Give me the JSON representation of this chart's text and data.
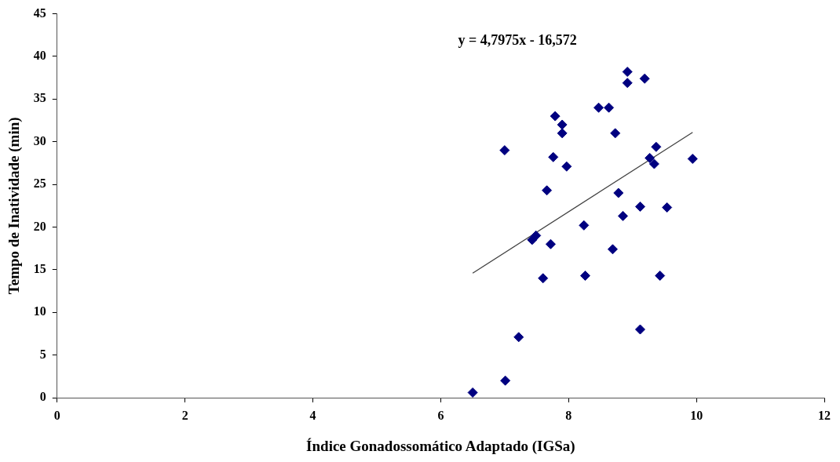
{
  "chart_data": {
    "type": "scatter",
    "xlabel": "Índice Gonadossomático Adaptado (IGSa)",
    "ylabel": "Tempo de Inatividade (min)",
    "annotations": [
      "y = 4,7975x - 16,572"
    ],
    "xlim": [
      0,
      12
    ],
    "xticks": [
      0,
      2,
      4,
      6,
      8,
      10,
      12
    ],
    "ylim": [
      0,
      45
    ],
    "yticks": [
      0,
      5,
      10,
      15,
      20,
      25,
      30,
      35,
      40,
      45
    ],
    "grid": false,
    "legend": false,
    "marker": "diamond",
    "series": [
      {
        "color": "#000080",
        "x": [
          6.5,
          7.01,
          7.22,
          7.0,
          7.66,
          7.6,
          7.72,
          7.76,
          7.79,
          7.9,
          7.9,
          7.97,
          8.24,
          8.26,
          8.47,
          8.63,
          8.73,
          8.69,
          8.78,
          8.85,
          8.92,
          8.92,
          9.19,
          9.12,
          9.12,
          9.27,
          9.34,
          9.37,
          9.43,
          9.54,
          9.94,
          7.43,
          7.49
        ],
        "values": [
          0.6,
          2.0,
          7.1,
          29.0,
          24.3,
          14.0,
          18.0,
          28.2,
          33.0,
          32.0,
          31.0,
          27.1,
          20.2,
          14.3,
          34.0,
          34.0,
          31.0,
          17.4,
          24.0,
          21.3,
          38.2,
          36.9,
          37.4,
          22.4,
          8.0,
          28.1,
          27.4,
          29.4,
          14.3,
          22.3,
          28.0,
          18.5,
          19.0
        ]
      },
      {
        "type": "line",
        "color": "#404040",
        "marker": "none",
        "x": [
          6.5,
          9.94
        ],
        "values": [
          14.6,
          31.1
        ]
      }
    ]
  }
}
